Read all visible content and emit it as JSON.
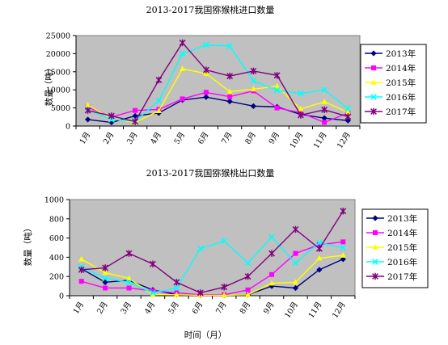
{
  "chart_data": [
    {
      "type": "line",
      "title": "2013-2017我国猕猴桃进口数量",
      "ylabel": "数量（吨）",
      "xlabel": "",
      "categories": [
        "1月",
        "2月",
        "3月",
        "4月",
        "5月",
        "6月",
        "7月",
        "8月",
        "9月",
        "10月",
        "11月",
        "12月"
      ],
      "ylim": [
        0,
        25000
      ],
      "yticks": [
        "0",
        "5000",
        "10000",
        "15000",
        "20000",
        "25000"
      ],
      "grid": false,
      "legend": "right",
      "series": [
        {
          "name": "2013年",
          "color": "#000080",
          "marker": "diamond",
          "values": [
            1800,
            1000,
            2800,
            3600,
            7200,
            8000,
            6800,
            5500,
            5300,
            3200,
            2200,
            1500
          ]
        },
        {
          "name": "2014年",
          "color": "#ff00ff",
          "marker": "square",
          "values": [
            5200,
            2500,
            4300,
            4600,
            7500,
            9300,
            8100,
            9700,
            5000,
            3700,
            1000,
            3600
          ]
        },
        {
          "name": "2015年",
          "color": "#ffff00",
          "marker": "triangle",
          "values": [
            5800,
            2000,
            1000,
            4200,
            15800,
            14500,
            9500,
            10200,
            11000,
            4700,
            6700,
            3800
          ]
        },
        {
          "name": "2016年",
          "color": "#00ffff",
          "marker": "x",
          "values": [
            4500,
            1800,
            1400,
            7000,
            20000,
            22400,
            22100,
            12500,
            9900,
            9000,
            10000,
            4800
          ]
        },
        {
          "name": "2017年",
          "color": "#800080",
          "marker": "star",
          "values": [
            4300,
            2800,
            1200,
            12700,
            23000,
            15500,
            13800,
            15200,
            14000,
            3000,
            4500,
            2600
          ]
        }
      ]
    },
    {
      "type": "line",
      "title": "2013-2017我国猕猴桃出口数量",
      "ylabel": "数量（吨）",
      "xlabel": "时间（月）",
      "categories": [
        "1月",
        "2月",
        "3月",
        "4月",
        "5月",
        "6月",
        "7月",
        "8月",
        "9月",
        "10月",
        "11月",
        "12月"
      ],
      "ylim": [
        0,
        1000
      ],
      "yticks": [
        "0",
        "200",
        "400",
        "600",
        "800",
        "1000"
      ],
      "grid": false,
      "legend": "right",
      "series": [
        {
          "name": "2013年",
          "color": "#000080",
          "marker": "diamond",
          "values": [
            280,
            140,
            160,
            60,
            10,
            5,
            5,
            10,
            100,
            80,
            270,
            380
          ]
        },
        {
          "name": "2014年",
          "color": "#ff00ff",
          "marker": "square",
          "values": [
            150,
            80,
            80,
            50,
            30,
            10,
            10,
            60,
            220,
            440,
            530,
            560
          ]
        },
        {
          "name": "2015年",
          "color": "#ffff00",
          "marker": "triangle",
          "values": [
            380,
            240,
            180,
            10,
            10,
            5,
            5,
            10,
            130,
            140,
            390,
            420
          ]
        },
        {
          "name": "2016年",
          "color": "#00ffff",
          "marker": "x",
          "values": [
            300,
            180,
            140,
            30,
            80,
            490,
            570,
            340,
            610,
            340,
            550,
            500
          ]
        },
        {
          "name": "2017年",
          "color": "#800080",
          "marker": "star",
          "values": [
            270,
            290,
            440,
            330,
            140,
            30,
            90,
            200,
            440,
            690,
            490,
            880
          ]
        }
      ]
    }
  ]
}
